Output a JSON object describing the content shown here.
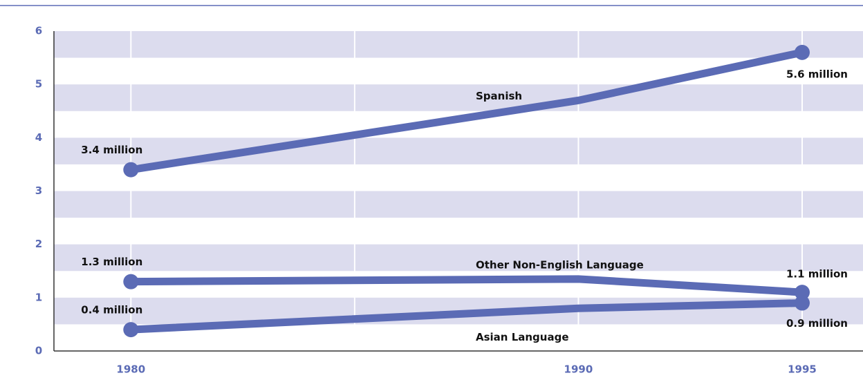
{
  "chart_data": {
    "type": "line",
    "x": [
      1980,
      1990,
      1995
    ],
    "xlim": [
      1978.28,
      1996.36
    ],
    "xticks": [
      1980,
      1990,
      1995
    ],
    "ylim": [
      0,
      6
    ],
    "yticks": [
      0,
      1,
      2,
      3,
      4,
      5,
      6
    ],
    "grid": true,
    "series": [
      {
        "name": "Spanish",
        "color": "#5b6bb5",
        "values": [
          3.4,
          4.7,
          5.6
        ],
        "value_labels": [
          "3.4 million",
          null,
          "5.6 million"
        ]
      },
      {
        "name": "Other Non-English Language",
        "color": "#5b6bb5",
        "values": [
          1.3,
          1.35,
          1.1
        ],
        "value_labels": [
          "1.3 million",
          null,
          "1.1 million"
        ]
      },
      {
        "name": "Asian Language",
        "color": "#5b6bb5",
        "values": [
          0.4,
          0.8,
          0.9
        ],
        "value_labels": [
          "0.4 million",
          null,
          "0.9 million"
        ]
      }
    ]
  }
}
